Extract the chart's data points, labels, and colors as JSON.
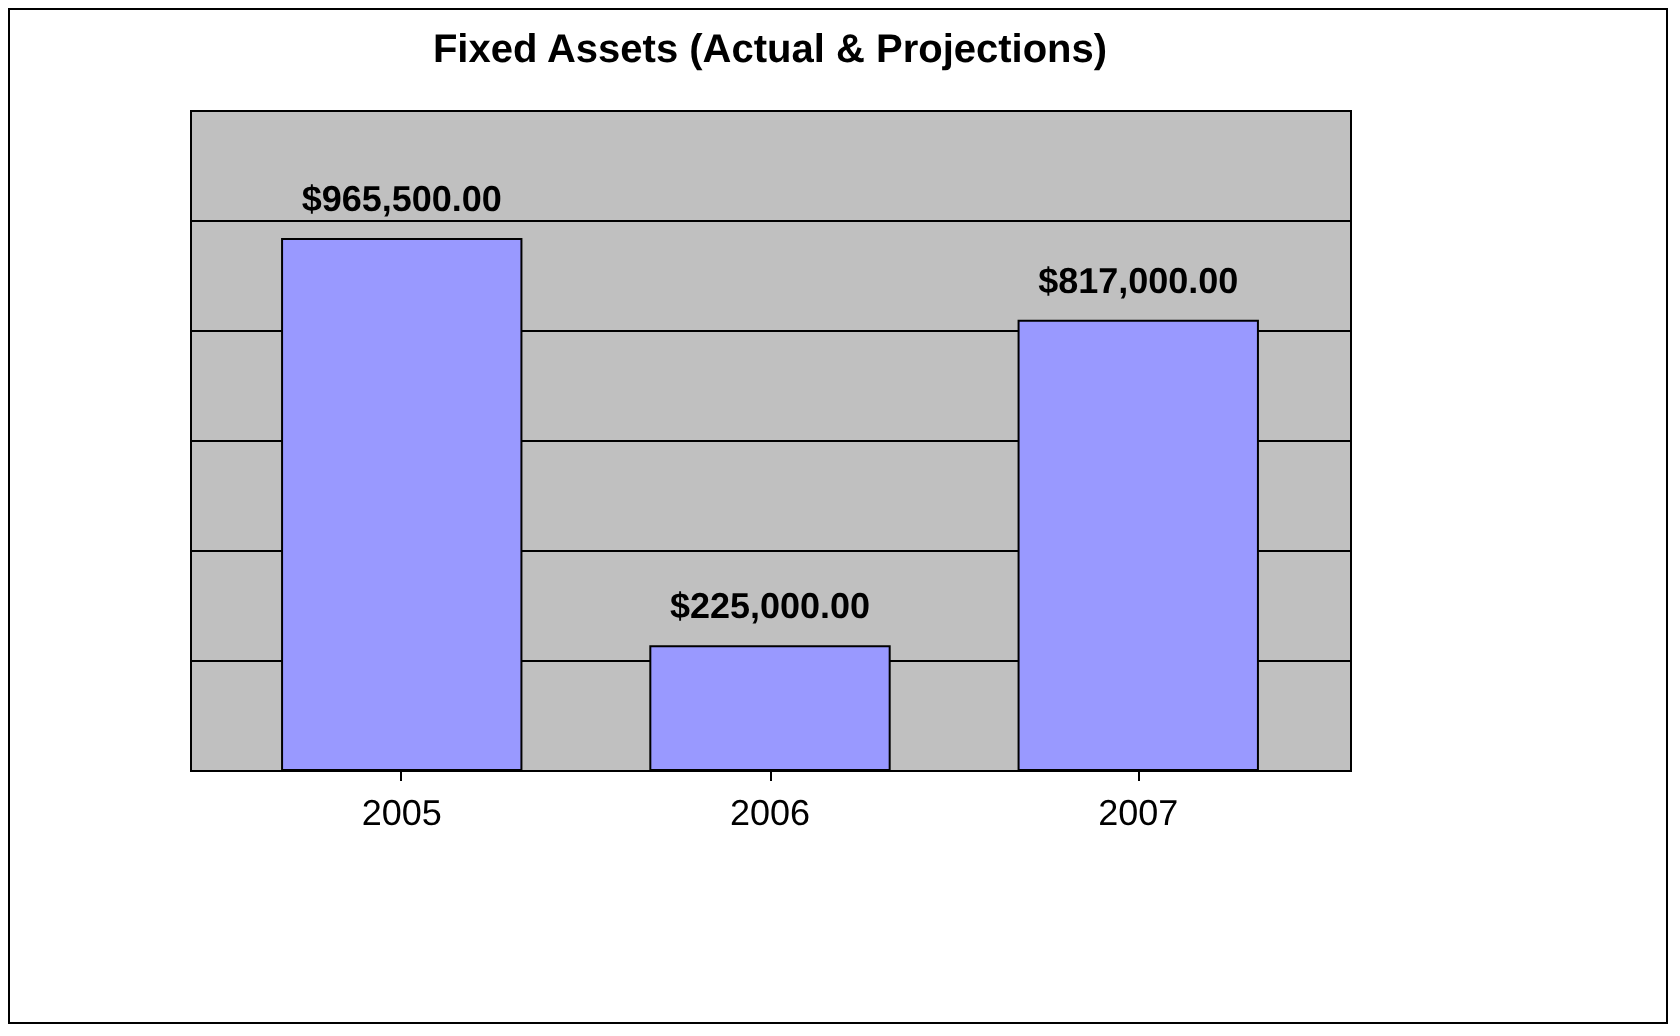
{
  "chart_data": {
    "type": "bar",
    "title": "Fixed Assets (Actual & Projections)",
    "categories": [
      "2005",
      "2006",
      "2007"
    ],
    "values": [
      965500,
      225000,
      817000
    ],
    "value_labels": [
      "$965,500.00",
      "$225,000.00",
      "$817,000.00"
    ],
    "color": "#9999ff",
    "ylim": [
      0,
      1200000
    ],
    "yticks": [
      {
        "value": 0,
        "label": null
      },
      {
        "value": 200000,
        "label": null
      },
      {
        "value": 400000,
        "label": null
      },
      {
        "value": 600000,
        "label": null
      },
      {
        "value": 800000,
        "label": null
      },
      {
        "value": 1000000,
        "label": null
      },
      {
        "value": 1200000,
        "label": null
      }
    ],
    "grid": "y",
    "tick_labels": "x"
  }
}
